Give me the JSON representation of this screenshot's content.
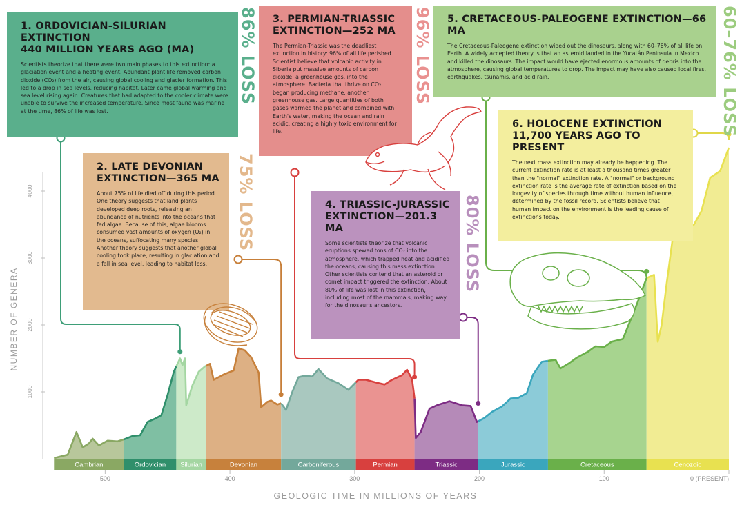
{
  "events": [
    {
      "id": 1,
      "title1": "1. ORDOVICIAN-SILURIAN EXTINCTION",
      "title2": "440 MILLION YEARS AGO (MA)",
      "loss": "86% LOSS",
      "color": "#5aaf8c",
      "loss_color": "#5aaf8c",
      "text": "Scientists theorize that there were two main phases to this extinction: a glaciation event and a heating event. Abundant plant life removed carbon dioxide (CO₂) from the air, causing global cooling and glacier formation. This led to a drop in sea levels, reducing habitat. Later came global warming and sea level rising again. Creatures that had adapted to the cooler climate were unable to survive the increased temperature. Since most fauna was marine at the time, 86% of life was lost."
    },
    {
      "id": 2,
      "title1": "2. LATE DEVONIAN",
      "title2": "EXTINCTION—365 MA",
      "loss": "75% LOSS",
      "color": "#e2ba8f",
      "loss_color": "#e3b88c",
      "text": "About 75% of life died off during this period. One theory suggests that land plants developed deep roots, releasing an abundance of nutrients into the oceans that fed algae. Because of this, algae blooms consumed vast amounts of oxygen (O₂) in the oceans, suffocating many species. Another theory suggests that another global cooling took place, resulting in glaciation and a fall in sea level, leading to habitat loss."
    },
    {
      "id": 3,
      "title1": "3. PERMIAN-TRIASSIC",
      "title2": "EXTINCTION—252 MA",
      "loss": "96% LOSS",
      "color": "#e48e8c",
      "loss_color": "#e99190",
      "text": "The Permian-Triassic was the deadliest extinction in history: 96% of all life perished. Scientist believe that volcanic activity in Siberia put massive amounts of carbon dioxide, a greenhouse gas, into the atmosphere. Bacteria that thrive on CO₂ began producing methane, another greenhouse gas. Large quantities of both gases warmed the planet and combined with Earth's water, making the ocean and rain acidic, creating a highly toxic environment for life."
    },
    {
      "id": 4,
      "title1": "4. TRIASSIC-JURASSIC",
      "title2": "EXTINCTION—201.3 MA",
      "loss": "80% LOSS",
      "color": "#bb92be",
      "loss_color": "#b88fbc",
      "text": "Some scientists theorize that volcanic eruptions spewed tons of CO₂ into the atmosphere, which trapped heat and acidified the oceans, causing this mass extinction. Other scientists contend that an asteroid or comet impact triggered the extinction. About 80% of life was lost in this extinction, including most of the mammals, making way for the dinosaur's ancestors."
    },
    {
      "id": 5,
      "title1": "5. CRETACEOUS-PALEOGENE EXTINCTION—66 MA",
      "title2": "",
      "loss": "60–76% LOSS",
      "color": "#a9d18e",
      "loss_color": "#9ccc7f",
      "text": "The Cretaceous-Paleogene extinction wiped out the dinosaurs, along with 60–76% of all life on Earth. A widely accepted theory is that an asteroid landed in the Yucatán Peninsula in Mexico and killed the dinosaurs. The impact would have ejected enormous amounts of debris into the atmosphere, causing global temperatures to drop. The impact may have also caused local fires, earthquakes, tsunamis, and acid rain."
    },
    {
      "id": 6,
      "title1": "6. HOLOCENE EXTINCTION",
      "title2": "11,700 YEARS AGO TO PRESENT",
      "loss": "",
      "color": "#f3ee9e",
      "loss_color": "",
      "text": "The next mass extinction may already be happening. The current extinction rate is at least a thousand times greater than the \"normal\" extinction rate. A \"normal\" or background extinction rate is the average rate of extinction based on the longevity of species through time without human influence, determined by the fossil record. Scientists believe that human impact on the environment is the leading cause of extinctions today."
    }
  ],
  "chart_data": {
    "type": "area",
    "title": "",
    "xlabel": "GEOLOGIC TIME IN MILLIONS OF YEARS",
    "ylabel": "NUMBER OF GENERA",
    "xlim": [
      550,
      0
    ],
    "ylim": [
      0,
      5000
    ],
    "x_ticks": [
      500,
      400,
      300,
      200,
      100,
      0
    ],
    "x_tick_labels": [
      "500",
      "400",
      "300",
      "200",
      "100",
      "0 (PRESENT)"
    ],
    "y_ticks": [
      1000,
      2000,
      3000,
      4000
    ],
    "periods": [
      {
        "name": "Cambrian",
        "start": 541,
        "end": 485,
        "color": "#8aa863",
        "fill": "#b8c79b"
      },
      {
        "name": "Ordovician",
        "start": 485,
        "end": 443,
        "color": "#2f8f6b",
        "fill": "#7fbfa3"
      },
      {
        "name": "Silurian",
        "start": 443,
        "end": 419,
        "color": "#a4d6a2",
        "fill": "#cdeac9"
      },
      {
        "name": "Devonian",
        "start": 419,
        "end": 359,
        "color": "#c7813c",
        "fill": "#ddb084"
      },
      {
        "name": "Carboniferous",
        "start": 359,
        "end": 299,
        "color": "#73a89b",
        "fill": "#a9c8bf"
      },
      {
        "name": "Permian",
        "start": 299,
        "end": 252,
        "color": "#d8403e",
        "fill": "#ea9391"
      },
      {
        "name": "Triassic",
        "start": 252,
        "end": 201,
        "color": "#7d2c84",
        "fill": "#b58ab8"
      },
      {
        "name": "Jurassic",
        "start": 201,
        "end": 145,
        "color": "#3aa6bd",
        "fill": "#8ccbd8"
      },
      {
        "name": "Cretaceous",
        "start": 145,
        "end": 66,
        "color": "#6ab04a",
        "fill": "#a7d48f"
      },
      {
        "name": "Cenozoic",
        "start": 66,
        "end": 0,
        "color": "#e8e150",
        "fill": "#f1ec93"
      }
    ],
    "series": [
      {
        "values": [
          [
            541,
            10
          ],
          [
            530,
            60
          ],
          [
            523,
            400
          ],
          [
            518,
            170
          ],
          [
            513,
            230
          ],
          [
            510,
            300
          ],
          [
            505,
            200
          ],
          [
            498,
            270
          ],
          [
            490,
            260
          ],
          [
            485,
            290
          ],
          [
            478,
            340
          ],
          [
            472,
            350
          ],
          [
            466,
            550
          ],
          [
            460,
            600
          ],
          [
            455,
            650
          ],
          [
            450,
            950
          ],
          [
            445,
            1300
          ],
          [
            440,
            1500
          ],
          [
            438,
            1400
          ],
          [
            436,
            1500
          ],
          [
            435,
            800
          ],
          [
            430,
            1100
          ],
          [
            425,
            1300
          ],
          [
            420,
            1380
          ],
          [
            416,
            1420
          ],
          [
            413,
            1180
          ],
          [
            405,
            1260
          ],
          [
            397,
            1320
          ],
          [
            393,
            1650
          ],
          [
            388,
            1620
          ],
          [
            383,
            1520
          ],
          [
            377,
            1290
          ],
          [
            375,
            770
          ],
          [
            370,
            850
          ],
          [
            367,
            870
          ],
          [
            362,
            810
          ],
          [
            359,
            830
          ],
          [
            355,
            730
          ],
          [
            350,
            1000
          ],
          [
            345,
            1220
          ],
          [
            340,
            1240
          ],
          [
            334,
            1230
          ],
          [
            329,
            1340
          ],
          [
            322,
            1200
          ],
          [
            313,
            1130
          ],
          [
            305,
            1030
          ],
          [
            297,
            1180
          ],
          [
            291,
            1180
          ],
          [
            283,
            1140
          ],
          [
            276,
            1110
          ],
          [
            270,
            1180
          ],
          [
            262,
            1250
          ],
          [
            258,
            1330
          ],
          [
            254,
            1190
          ],
          [
            252,
            900
          ],
          [
            251,
            310
          ],
          [
            247,
            400
          ],
          [
            240,
            750
          ],
          [
            234,
            800
          ],
          [
            224,
            860
          ],
          [
            214,
            800
          ],
          [
            207,
            790
          ],
          [
            202,
            550
          ],
          [
            196,
            610
          ],
          [
            190,
            700
          ],
          [
            182,
            780
          ],
          [
            175,
            900
          ],
          [
            169,
            910
          ],
          [
            162,
            980
          ],
          [
            157,
            1260
          ],
          [
            150,
            1450
          ],
          [
            143,
            1470
          ],
          [
            139,
            1480
          ],
          [
            135,
            1350
          ],
          [
            128,
            1430
          ],
          [
            122,
            1510
          ],
          [
            113,
            1600
          ],
          [
            107,
            1680
          ],
          [
            100,
            1670
          ],
          [
            94,
            1750
          ],
          [
            85,
            1790
          ],
          [
            80,
            2020
          ],
          [
            74,
            2300
          ],
          [
            70,
            2500
          ],
          [
            66,
            2700
          ],
          [
            60,
            2750
          ],
          [
            57,
            1750
          ],
          [
            54,
            1990
          ],
          [
            50,
            2600
          ],
          [
            45,
            3300
          ],
          [
            40,
            3500
          ],
          [
            34,
            3450
          ],
          [
            28,
            3500
          ],
          [
            22,
            3700
          ],
          [
            15,
            4200
          ],
          [
            7,
            4300
          ],
          [
            0,
            4650
          ]
        ]
      }
    ]
  },
  "markers": [
    {
      "event": 1,
      "x": 440,
      "y": 1600,
      "label_x": 88,
      "label_y": 200,
      "color": "#3e9e78"
    },
    {
      "event": 2,
      "x": 359,
      "y": 960,
      "label_x": 345,
      "label_y": 376,
      "color": "#c77f39"
    },
    {
      "event": 3,
      "x": 252,
      "y": 1220,
      "label_x": 427,
      "label_y": 250,
      "color": "#d8403e"
    },
    {
      "event": 4,
      "x": 201,
      "y": 830,
      "label_x": 671,
      "label_y": 460,
      "color": "#7d2c84"
    },
    {
      "event": 5,
      "x": 66,
      "y": 2800,
      "label_x": 704,
      "label_y": 141,
      "color": "#6ab04a"
    },
    {
      "event": 6,
      "x": 0,
      "y": 4850,
      "label_x": 1005,
      "label_y": 193,
      "color": "#e0d748"
    }
  ]
}
